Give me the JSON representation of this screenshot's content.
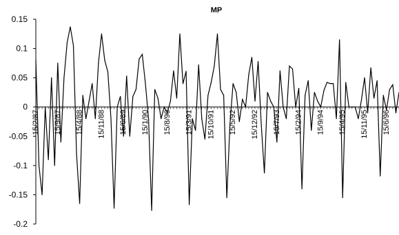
{
  "chart_data": {
    "type": "line",
    "title": "MP",
    "xlabel": "",
    "ylabel": "",
    "ylim": [
      -0.2,
      0.15
    ],
    "y_ticks": [
      "0.15",
      "0.1",
      "0.05",
      "0",
      "-0.05",
      "-0.1",
      "-0.15",
      "-0.2"
    ],
    "x_tick_labels": [
      {
        "label": "15/2/87",
        "index": 0
      },
      {
        "label": "15/9/87",
        "index": 7
      },
      {
        "label": "15/4/88",
        "index": 14
      },
      {
        "label": "15/11/88",
        "index": 21
      },
      {
        "label": "15/6/89",
        "index": 28
      },
      {
        "label": "15/1/90",
        "index": 35
      },
      {
        "label": "15/8/90",
        "index": 42
      },
      {
        "label": "15/3/91",
        "index": 49
      },
      {
        "label": "15/10/91",
        "index": 56
      },
      {
        "label": "15/5/92",
        "index": 63
      },
      {
        "label": "15/12/92",
        "index": 70
      },
      {
        "label": "15/7/93",
        "index": 77
      },
      {
        "label": "15/2/94",
        "index": 84
      },
      {
        "label": "15/9/94",
        "index": 91
      },
      {
        "label": "15/4/95",
        "index": 98
      },
      {
        "label": "15/11/95",
        "index": 105
      },
      {
        "label": "15/6/96",
        "index": 112
      }
    ],
    "grid": false,
    "series": [
      {
        "values": [
          0.08,
          -0.1,
          -0.15,
          0.0,
          -0.09,
          0.05,
          -0.1,
          0.075,
          -0.06,
          0.05,
          0.11,
          0.137,
          0.105,
          -0.08,
          -0.165,
          0.02,
          -0.02,
          0.01,
          0.04,
          -0.02,
          0.075,
          0.125,
          0.08,
          0.06,
          -0.02,
          -0.173,
          0.0,
          0.018,
          -0.05,
          0.053,
          -0.05,
          0.018,
          0.03,
          0.082,
          0.09,
          0.04,
          -0.02,
          -0.177,
          0.03,
          0.015,
          -0.02,
          0.0,
          -0.01,
          0.01,
          0.062,
          0.015,
          0.125,
          0.04,
          0.061,
          -0.167,
          -0.02,
          -0.04,
          0.072,
          -0.02,
          -0.055,
          0.02,
          0.042,
          0.07,
          0.125,
          0.03,
          0.02,
          -0.155,
          -0.03,
          0.04,
          0.025,
          -0.025,
          0.013,
          0.0,
          0.055,
          0.085,
          0.01,
          0.078,
          -0.03,
          -0.113,
          0.025,
          0.01,
          0.0,
          -0.06,
          0.062,
          0.0,
          -0.02,
          0.07,
          0.065,
          0.0,
          0.032,
          -0.14,
          0.02,
          0.045,
          -0.04,
          0.025,
          0.01,
          0.0,
          0.028,
          0.042,
          0.04,
          0.04,
          -0.02,
          0.115,
          -0.155,
          0.042,
          0.0,
          0.0,
          0.0,
          -0.02,
          0.012,
          0.05,
          -0.01,
          0.067,
          0.015,
          0.045,
          -0.118,
          0.02,
          -0.005,
          0.03,
          0.038,
          -0.01,
          0.025
        ],
        "color": "#000000"
      }
    ]
  }
}
